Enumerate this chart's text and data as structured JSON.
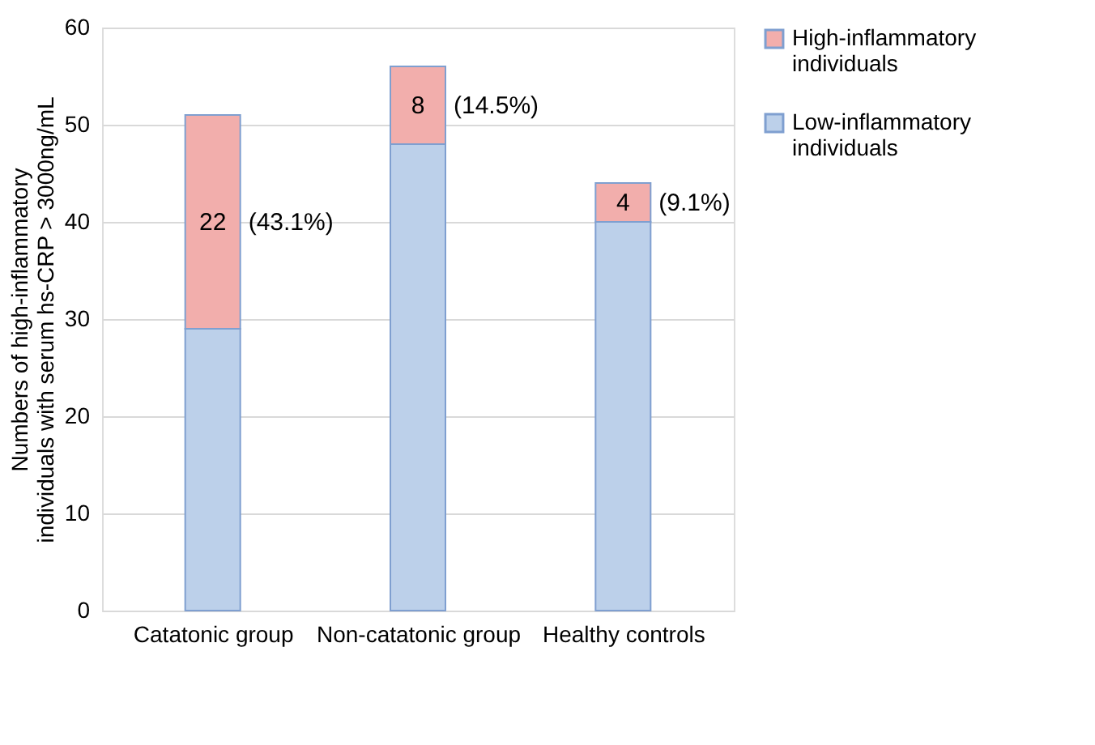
{
  "chart_data": {
    "type": "bar",
    "stacked": true,
    "ylabel": "Numbers of high-inflammatory individuals with serum hs-CRP > 3000ng/mL",
    "categories": [
      "Catatonic group",
      "Non-catatonic group",
      "Healthy controls"
    ],
    "series": [
      {
        "name": "Low-inflammatory individuals",
        "color": "#bcd0ea",
        "values": [
          29,
          48,
          40
        ]
      },
      {
        "name": "High-inflammatory individuals",
        "color": "#f2aeac",
        "values": [
          22,
          8,
          4
        ],
        "value_labels": [
          "22",
          "8",
          "4"
        ]
      }
    ],
    "annotations": [
      "(43.1%)",
      "(14.5%)",
      "(9.1%)"
    ],
    "ylim": [
      0,
      60
    ],
    "yticks": [
      0,
      10,
      20,
      30,
      40,
      50,
      60
    ],
    "grid": "y",
    "legend": "right"
  }
}
